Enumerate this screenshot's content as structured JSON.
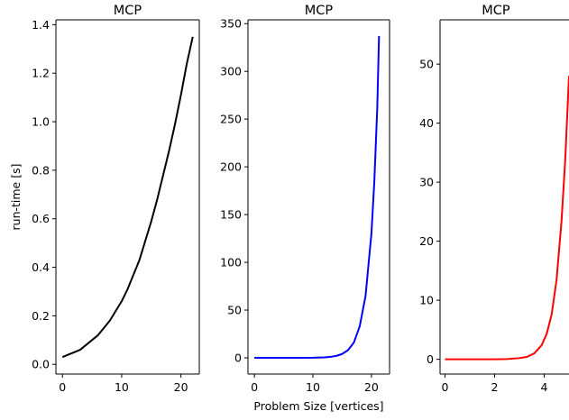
{
  "chart_data": [
    {
      "type": "line",
      "title": "MCP",
      "xlabel": "",
      "ylabel": "run-time [s]",
      "xlim": [
        -1.1,
        23.1
      ],
      "ylim": [
        -0.04,
        1.42
      ],
      "xticks": [
        0,
        10,
        20
      ],
      "yticks": [
        0.0,
        0.2,
        0.4,
        0.6,
        0.8,
        1.0,
        1.2,
        1.4
      ],
      "ytick_labels": [
        "0.0",
        "0.2",
        "0.4",
        "0.6",
        "0.8",
        "1.0",
        "1.2",
        "1.4"
      ],
      "series": [
        {
          "color": "#000000",
          "x": [
            0,
            1,
            2,
            3,
            4,
            5,
            6,
            7,
            8,
            9,
            10,
            11,
            12,
            13,
            14,
            15,
            16,
            17,
            18,
            19,
            20,
            21,
            22
          ],
          "y": [
            0.03,
            0.04,
            0.05,
            0.06,
            0.08,
            0.1,
            0.12,
            0.15,
            0.18,
            0.22,
            0.26,
            0.31,
            0.37,
            0.43,
            0.51,
            0.59,
            0.68,
            0.78,
            0.88,
            0.99,
            1.11,
            1.24,
            1.35
          ]
        }
      ]
    },
    {
      "type": "line",
      "title": "MCP",
      "xlabel": "Problem Size [vertices]",
      "ylabel": "",
      "xlim": [
        -1.1,
        23.1
      ],
      "ylim": [
        -17,
        354
      ],
      "xticks": [
        0,
        10,
        20
      ],
      "yticks": [
        0,
        50,
        100,
        150,
        200,
        250,
        300,
        350
      ],
      "series": [
        {
          "color": "#0000ff",
          "x": [
            0,
            2,
            4,
            6,
            8,
            10,
            12,
            13,
            14,
            15,
            16,
            17,
            18,
            19,
            20,
            20.5,
            21,
            21.3
          ],
          "y": [
            0,
            0,
            0,
            0,
            0,
            0.1,
            0.5,
            1,
            2,
            4,
            8,
            16,
            33,
            65,
            130,
            185,
            262,
            337
          ]
        }
      ]
    },
    {
      "type": "line",
      "title": "MCP",
      "xlabel": "",
      "ylabel": "",
      "xlim": [
        -0.2,
        5.0
      ],
      "ylim": [
        -2.5,
        57.5
      ],
      "xticks": [
        0,
        2,
        4
      ],
      "yticks": [
        0,
        10,
        20,
        30,
        40,
        50
      ],
      "series": [
        {
          "color": "#ff0000",
          "x": [
            0,
            0.5,
            1,
            1.5,
            2,
            2.5,
            3,
            3.3,
            3.6,
            3.9,
            4.1,
            4.3,
            4.5,
            4.7,
            4.85,
            5.0
          ],
          "y": [
            0,
            0,
            0,
            0,
            0,
            0.03,
            0.2,
            0.4,
            1,
            2.4,
            4.3,
            7.6,
            13.5,
            23.5,
            34,
            48
          ]
        }
      ]
    }
  ]
}
